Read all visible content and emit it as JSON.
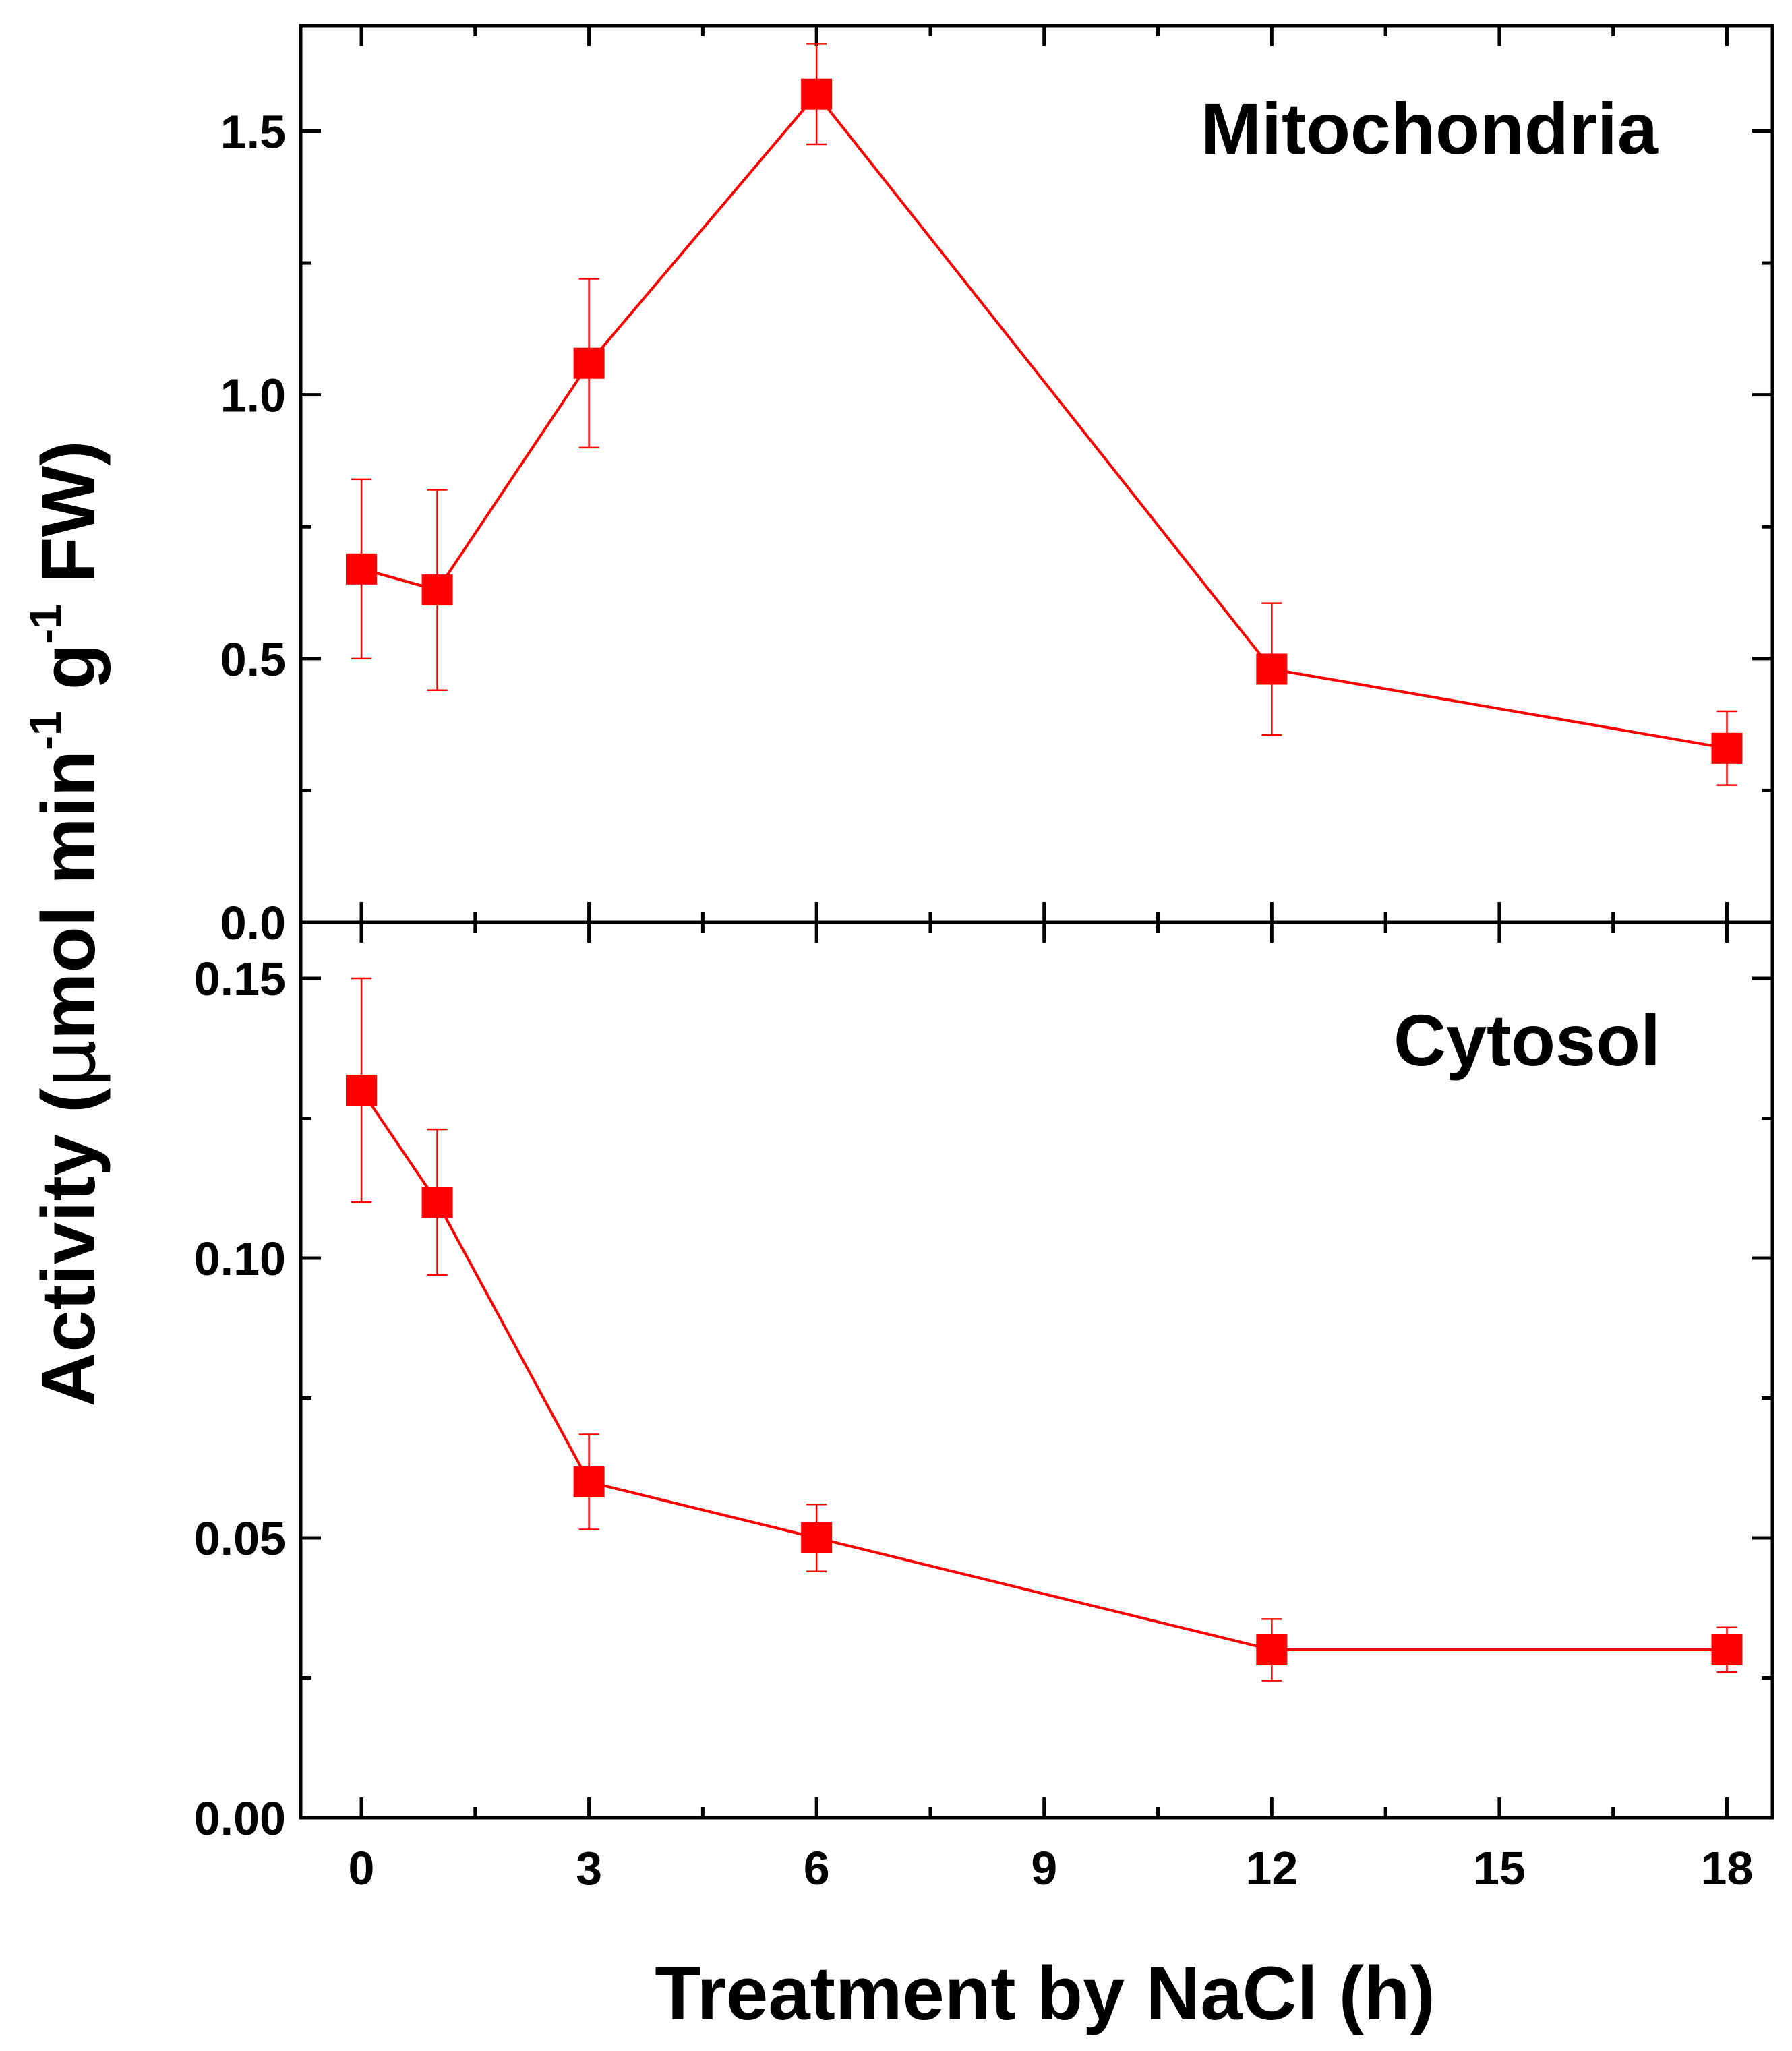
{
  "chart_data": [
    {
      "type": "line",
      "panel": "top",
      "title": "Mitochondria",
      "xlabel": "Treatment by NaCl (h)",
      "ylabel": "Activity (μmol min-1 g-1 FW)",
      "xlim": [
        -0.8,
        18.6
      ],
      "ylim": [
        0,
        1.7
      ],
      "yticks": [
        0.0,
        0.5,
        1.0,
        1.5
      ],
      "ytick_labels": [
        "0.0",
        "0.5",
        "1.0",
        "1.5"
      ],
      "grid": false,
      "series": [
        {
          "color": "#ff0000",
          "marker": "square",
          "x": [
            0,
            1,
            3,
            6,
            12,
            18
          ],
          "y": [
            0.67,
            0.63,
            1.06,
            1.57,
            0.48,
            0.33
          ],
          "yerr": [
            0.17,
            0.19,
            0.16,
            0.095,
            0.125,
            0.07
          ]
        }
      ]
    },
    {
      "type": "line",
      "panel": "bottom",
      "title": "Cytosol",
      "xlabel": "Treatment by NaCl (h)",
      "ylabel": "Activity (μmol min-1 g-1 FW)",
      "xlim": [
        -0.8,
        18.6
      ],
      "ylim": [
        0,
        0.16
      ],
      "xticks": [
        0,
        3,
        6,
        9,
        12,
        15,
        18
      ],
      "xtick_labels": [
        "0",
        "3",
        "6",
        "9",
        "12",
        "15",
        "18"
      ],
      "yticks": [
        0.0,
        0.05,
        0.1,
        0.15
      ],
      "ytick_labels": [
        "0.00",
        "0.05",
        "0.10",
        "0.15"
      ],
      "grid": false,
      "series": [
        {
          "color": "#ff0000",
          "marker": "square",
          "x": [
            0,
            1,
            3,
            6,
            12,
            18
          ],
          "y": [
            0.13,
            0.11,
            0.06,
            0.05,
            0.03,
            0.03
          ],
          "yerr": [
            0.02,
            0.013,
            0.0085,
            0.006,
            0.0055,
            0.004
          ]
        }
      ]
    }
  ],
  "labels": {
    "top_panel": "Mitochondria",
    "bottom_panel": "Cytosol",
    "x_axis_title": "Treatment by NaCl (h)",
    "y_axis_title_prefix": "Activity (",
    "y_axis_title_mu": "μ",
    "y_axis_title_mol_min": "mol min",
    "y_axis_title_sup1": "-1",
    "y_axis_title_g": " g",
    "y_axis_title_sup2": "-1",
    "y_axis_title_suffix": " FW)"
  }
}
